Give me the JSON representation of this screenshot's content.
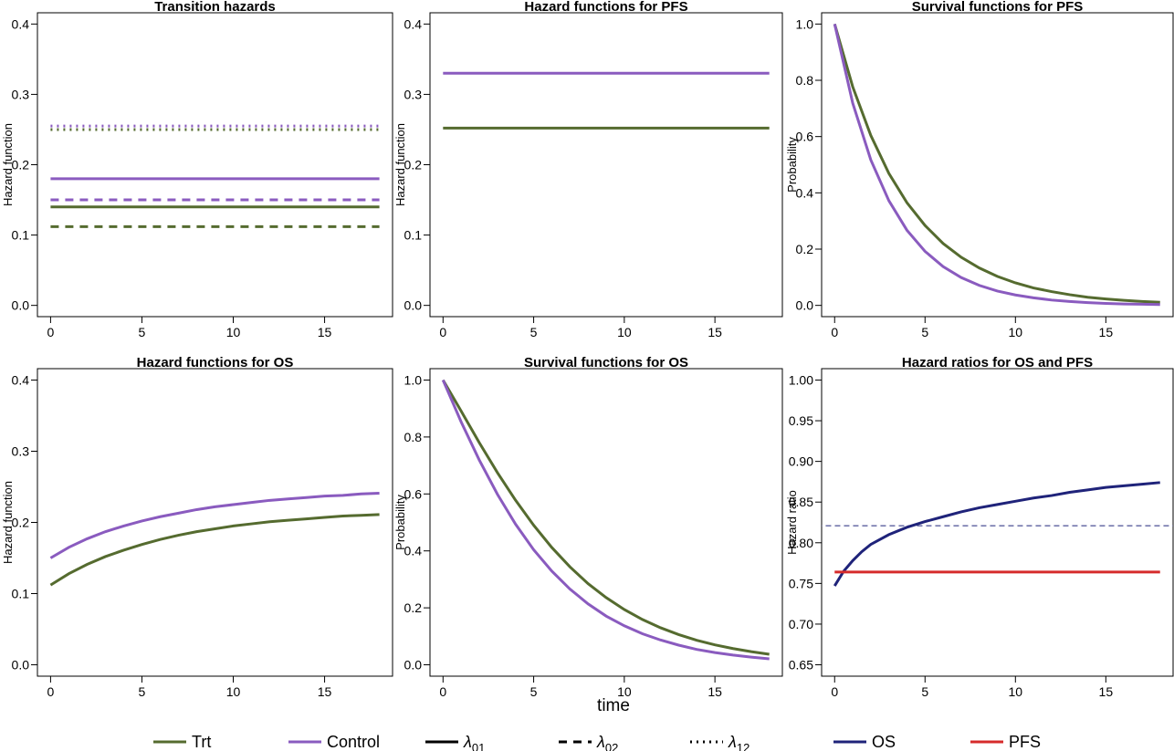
{
  "colors": {
    "trt": "#556B2F",
    "control": "#8A5BBF",
    "os": "#1F237A",
    "pfs": "#D62B2B",
    "ref": "#1F237A"
  },
  "shared_xlabel": "time",
  "legend": [
    {
      "label": "Trt",
      "color": "#556B2F",
      "dash": "solid"
    },
    {
      "label": "Control",
      "color": "#8A5BBF",
      "dash": "solid"
    },
    {
      "label": "λ",
      "sub": "01",
      "color": "#000000",
      "dash": "solid"
    },
    {
      "label": "λ",
      "sub": "02",
      "color": "#000000",
      "dash": "dashed"
    },
    {
      "label": "λ",
      "sub": "12",
      "color": "#000000",
      "dash": "dotted"
    },
    {
      "label": "OS",
      "color": "#1F237A",
      "dash": "solid"
    },
    {
      "label": "PFS",
      "color": "#D62B2B",
      "dash": "solid"
    }
  ],
  "chart_data": [
    {
      "type": "line",
      "title": "Transition hazards",
      "xlabel": "",
      "ylabel": "Hazard function",
      "xlim": [
        0,
        18
      ],
      "ylim": [
        0,
        0.4
      ],
      "xticks": [
        0,
        5,
        10,
        15
      ],
      "yticks": [
        "0.0",
        "0.1",
        "0.2",
        "0.3",
        "0.4"
      ],
      "series": [
        {
          "name": "Trt λ12",
          "color": "#556B2F",
          "dash": "dotted",
          "x": [
            0,
            18
          ],
          "y": [
            0.25,
            0.25
          ]
        },
        {
          "name": "Control λ12",
          "color": "#8A5BBF",
          "dash": "dotted",
          "x": [
            0,
            18
          ],
          "y": [
            0.255,
            0.255
          ]
        },
        {
          "name": "Control λ01",
          "color": "#8A5BBF",
          "dash": "solid",
          "x": [
            0,
            18
          ],
          "y": [
            0.18,
            0.18
          ]
        },
        {
          "name": "Control λ02",
          "color": "#8A5BBF",
          "dash": "dashed",
          "x": [
            0,
            18
          ],
          "y": [
            0.15,
            0.15
          ]
        },
        {
          "name": "Trt λ01",
          "color": "#556B2F",
          "dash": "solid",
          "x": [
            0,
            18
          ],
          "y": [
            0.14,
            0.14
          ]
        },
        {
          "name": "Trt λ02",
          "color": "#556B2F",
          "dash": "dashed",
          "x": [
            0,
            18
          ],
          "y": [
            0.112,
            0.112
          ]
        }
      ]
    },
    {
      "type": "line",
      "title": "Hazard functions for PFS",
      "xlabel": "",
      "ylabel": "Hazard function",
      "xlim": [
        0,
        18
      ],
      "ylim": [
        0,
        0.4
      ],
      "xticks": [
        0,
        5,
        10,
        15
      ],
      "yticks": [
        "0.0",
        "0.1",
        "0.2",
        "0.3",
        "0.4"
      ],
      "series": [
        {
          "name": "Control",
          "color": "#8A5BBF",
          "dash": "solid",
          "x": [
            0,
            18
          ],
          "y": [
            0.33,
            0.33
          ]
        },
        {
          "name": "Trt",
          "color": "#556B2F",
          "dash": "solid",
          "x": [
            0,
            18
          ],
          "y": [
            0.252,
            0.252
          ]
        }
      ]
    },
    {
      "type": "line",
      "title": "Survival functions for PFS",
      "xlabel": "",
      "ylabel": "Probability",
      "xlim": [
        0,
        18
      ],
      "ylim": [
        0,
        1.0
      ],
      "xticks": [
        0,
        5,
        10,
        15
      ],
      "yticks": [
        "0.0",
        "0.2",
        "0.4",
        "0.6",
        "0.8",
        "1.0"
      ],
      "series": [
        {
          "name": "Trt",
          "color": "#556B2F",
          "dash": "solid",
          "x": [
            0,
            1,
            2,
            3,
            4,
            5,
            6,
            7,
            8,
            9,
            10,
            11,
            12,
            13,
            14,
            15,
            16,
            17,
            18
          ],
          "y": [
            1.0,
            0.777,
            0.604,
            0.469,
            0.365,
            0.284,
            0.22,
            0.171,
            0.133,
            0.103,
            0.08,
            0.062,
            0.049,
            0.038,
            0.029,
            0.023,
            0.018,
            0.014,
            0.011
          ]
        },
        {
          "name": "Control",
          "color": "#8A5BBF",
          "dash": "solid",
          "x": [
            0,
            1,
            2,
            3,
            4,
            5,
            6,
            7,
            8,
            9,
            10,
            11,
            12,
            13,
            14,
            15,
            16,
            17,
            18
          ],
          "y": [
            1.0,
            0.719,
            0.517,
            0.372,
            0.267,
            0.192,
            0.138,
            0.099,
            0.071,
            0.051,
            0.037,
            0.027,
            0.019,
            0.014,
            0.01,
            0.007,
            0.005,
            0.004,
            0.003
          ]
        }
      ]
    },
    {
      "type": "line",
      "title": "Hazard functions for OS",
      "xlabel": "",
      "ylabel": "Hazard function",
      "xlim": [
        0,
        18
      ],
      "ylim": [
        0,
        0.4
      ],
      "xticks": [
        0,
        5,
        10,
        15
      ],
      "yticks": [
        "0.0",
        "0.1",
        "0.2",
        "0.3",
        "0.4"
      ],
      "series": [
        {
          "name": "Control",
          "color": "#8A5BBF",
          "dash": "solid",
          "x": [
            0,
            1,
            2,
            3,
            4,
            5,
            6,
            7,
            8,
            9,
            10,
            11,
            12,
            13,
            14,
            15,
            16,
            17,
            18
          ],
          "y": [
            0.15,
            0.165,
            0.177,
            0.187,
            0.195,
            0.202,
            0.208,
            0.213,
            0.218,
            0.222,
            0.225,
            0.228,
            0.231,
            0.233,
            0.235,
            0.237,
            0.238,
            0.24,
            0.241
          ]
        },
        {
          "name": "Trt",
          "color": "#556B2F",
          "dash": "solid",
          "x": [
            0,
            1,
            2,
            3,
            4,
            5,
            6,
            7,
            8,
            9,
            10,
            11,
            12,
            13,
            14,
            15,
            16,
            17,
            18
          ],
          "y": [
            0.112,
            0.128,
            0.141,
            0.152,
            0.161,
            0.169,
            0.176,
            0.182,
            0.187,
            0.191,
            0.195,
            0.198,
            0.201,
            0.203,
            0.205,
            0.207,
            0.209,
            0.21,
            0.211
          ]
        }
      ]
    },
    {
      "type": "line",
      "title": "Survival functions for OS",
      "xlabel": "",
      "ylabel": "Probability",
      "xlim": [
        0,
        18
      ],
      "ylim": [
        0,
        1.0
      ],
      "xticks": [
        0,
        5,
        10,
        15
      ],
      "yticks": [
        "0.0",
        "0.2",
        "0.4",
        "0.6",
        "0.8",
        "1.0"
      ],
      "series": [
        {
          "name": "Trt",
          "color": "#556B2F",
          "dash": "solid",
          "x": [
            0,
            1,
            2,
            3,
            4,
            5,
            6,
            7,
            8,
            9,
            10,
            11,
            12,
            13,
            14,
            15,
            16,
            17,
            18
          ],
          "y": [
            1.0,
            0.891,
            0.78,
            0.675,
            0.578,
            0.49,
            0.412,
            0.344,
            0.285,
            0.236,
            0.194,
            0.159,
            0.13,
            0.106,
            0.086,
            0.07,
            0.057,
            0.046,
            0.037
          ]
        },
        {
          "name": "Control",
          "color": "#8A5BBF",
          "dash": "solid",
          "x": [
            0,
            1,
            2,
            3,
            4,
            5,
            6,
            7,
            8,
            9,
            10,
            11,
            12,
            13,
            14,
            15,
            16,
            17,
            18
          ],
          "y": [
            1.0,
            0.853,
            0.719,
            0.599,
            0.494,
            0.404,
            0.329,
            0.266,
            0.214,
            0.171,
            0.137,
            0.109,
            0.087,
            0.069,
            0.054,
            0.043,
            0.034,
            0.027,
            0.021
          ]
        }
      ]
    },
    {
      "type": "line",
      "title": "Hazard ratios for OS and PFS",
      "xlabel": "",
      "ylabel": "Hazard ratio",
      "xlim": [
        0,
        18
      ],
      "ylim": [
        0.65,
        1.0
      ],
      "xticks": [
        0,
        5,
        10,
        15
      ],
      "yticks": [
        "0.65",
        "0.70",
        "0.75",
        "0.80",
        "0.85",
        "0.90",
        "0.95",
        "1.00"
      ],
      "series": [
        {
          "name": "OS",
          "color": "#1F237A",
          "dash": "solid",
          "x": [
            0,
            0.5,
            1,
            1.5,
            2,
            3,
            4,
            5,
            6,
            7,
            8,
            9,
            10,
            11,
            12,
            13,
            14,
            15,
            16,
            17,
            18
          ],
          "y": [
            0.747,
            0.765,
            0.778,
            0.789,
            0.798,
            0.81,
            0.819,
            0.826,
            0.832,
            0.838,
            0.843,
            0.847,
            0.851,
            0.855,
            0.858,
            0.862,
            0.865,
            0.868,
            0.87,
            0.872,
            0.874
          ]
        },
        {
          "name": "PFS",
          "color": "#D62B2B",
          "dash": "solid",
          "x": [
            0,
            18
          ],
          "y": [
            0.764,
            0.764
          ]
        },
        {
          "name": "OS reference",
          "color": "#1F237A",
          "dash": "dashed",
          "thin": true,
          "x": [
            -1,
            19.5
          ],
          "y": [
            0.821,
            0.821
          ]
        }
      ]
    }
  ]
}
